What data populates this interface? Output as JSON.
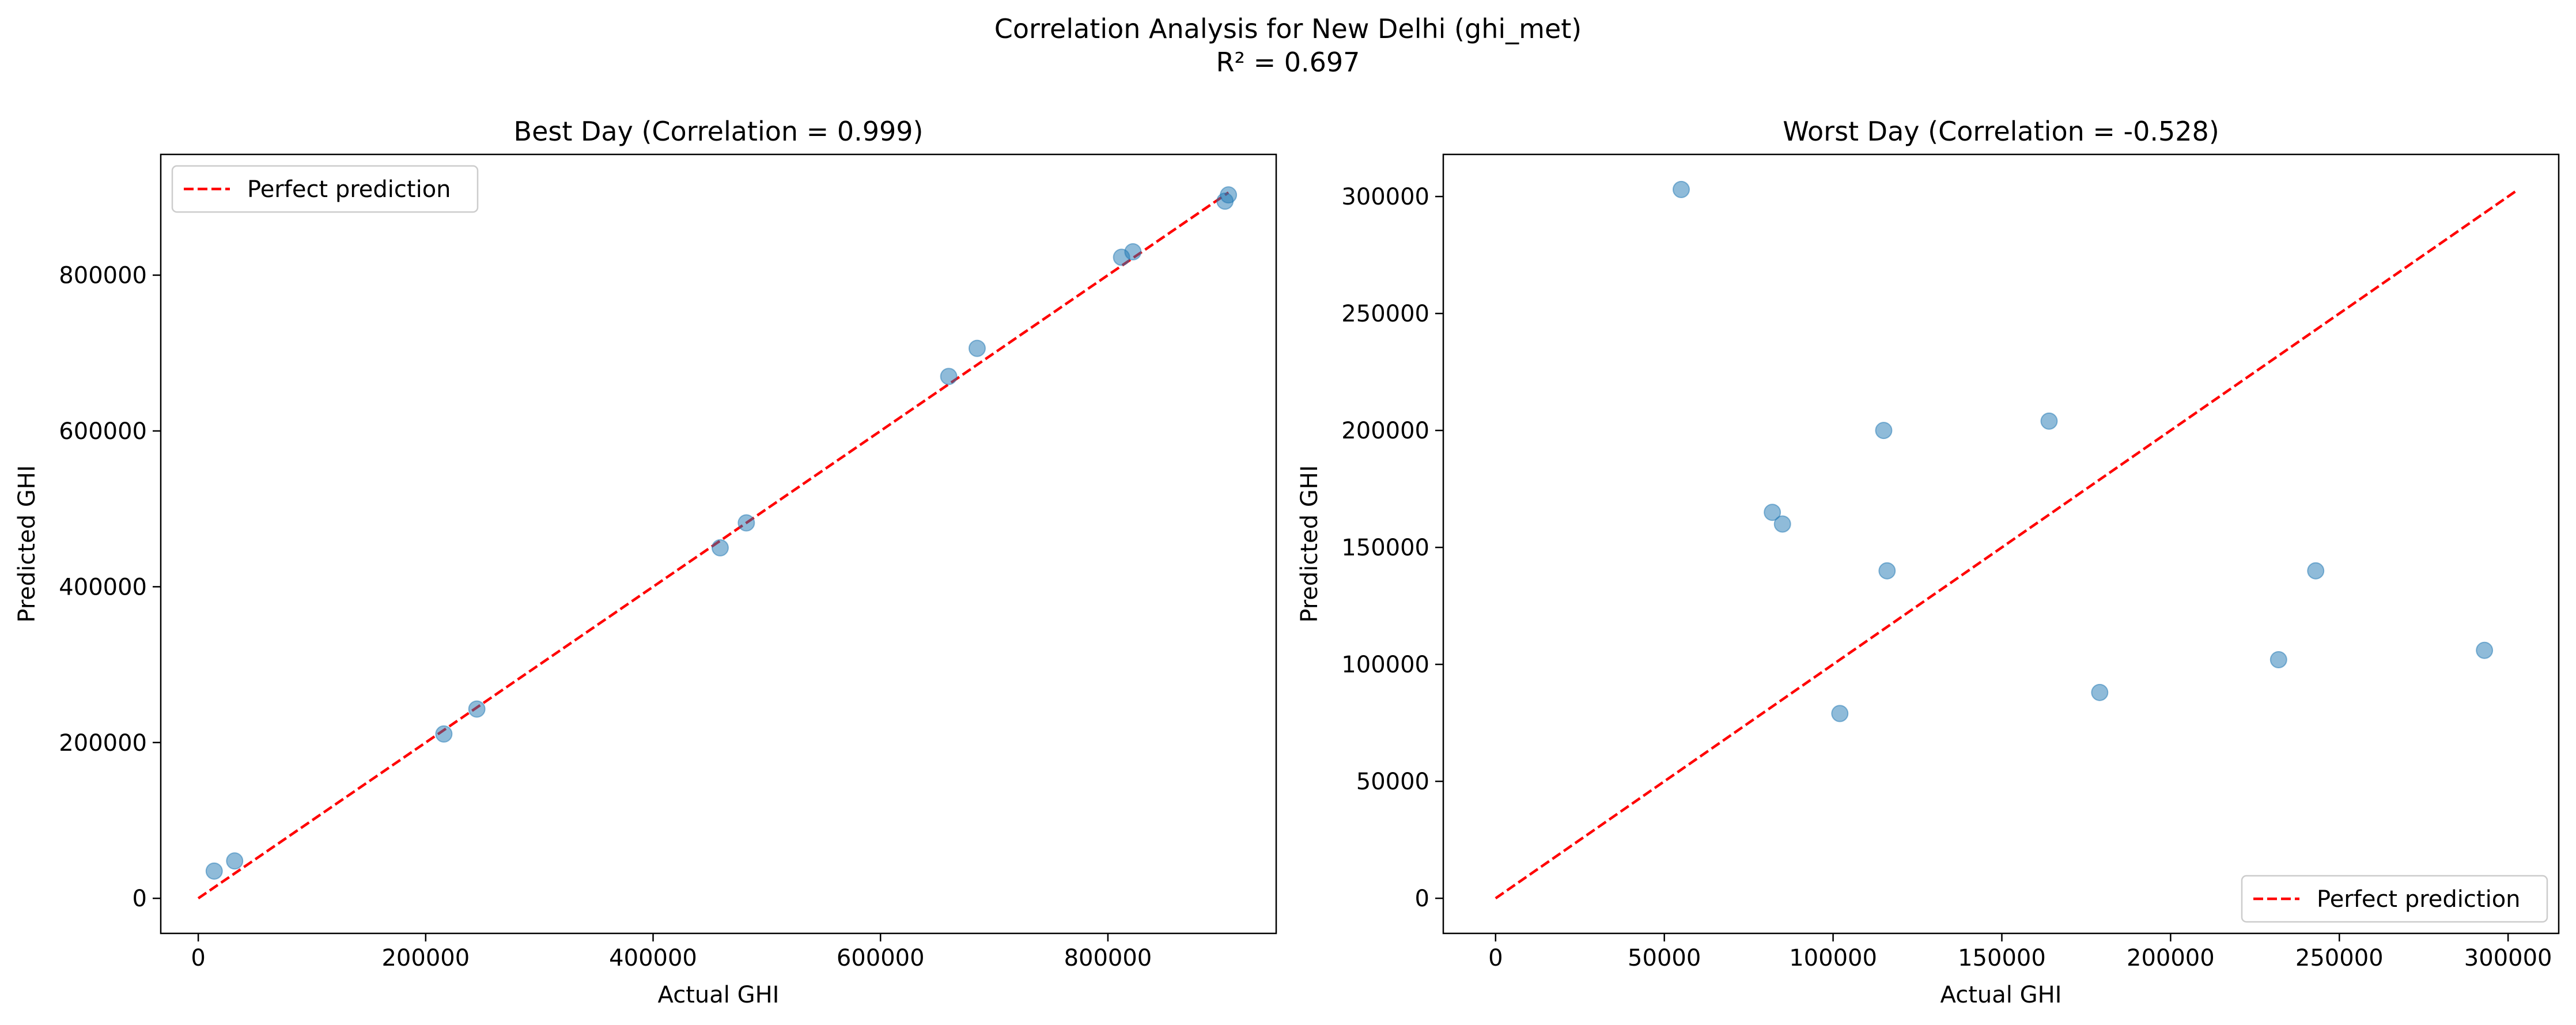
{
  "figure": {
    "title_line1": "Correlation Analysis for New Delhi (ghi_met)",
    "title_line2": "R² = 0.697"
  },
  "colors": {
    "point": "#1f77b4",
    "reference_line": "#ff0000",
    "axes": "#000000"
  },
  "chart_data": [
    {
      "type": "scatter",
      "title": "Best Day (Correlation = 0.999)",
      "xlabel": "Actual GHI",
      "ylabel": "Predicted GHI",
      "xlim": [
        -33000,
        948000
      ],
      "ylim": [
        -45000,
        955000
      ],
      "xticks": [
        0,
        200000,
        400000,
        600000,
        800000
      ],
      "xtick_labels": [
        "0",
        "200000",
        "400000",
        "600000",
        "800000"
      ],
      "yticks": [
        0,
        200000,
        400000,
        600000,
        800000
      ],
      "ytick_labels": [
        "0",
        "200000",
        "400000",
        "600000",
        "800000"
      ],
      "grid": false,
      "legend": {
        "position": "upper-left",
        "entries": [
          "Perfect prediction"
        ]
      },
      "reference_line": {
        "name": "Perfect prediction",
        "style": "dashed",
        "x": [
          0,
          906000
        ],
        "y": [
          0,
          906000
        ]
      },
      "points": [
        {
          "x": 14000,
          "y": 35000
        },
        {
          "x": 32000,
          "y": 48000
        },
        {
          "x": 216000,
          "y": 211000
        },
        {
          "x": 245000,
          "y": 243000
        },
        {
          "x": 459000,
          "y": 450000
        },
        {
          "x": 482000,
          "y": 482000
        },
        {
          "x": 660000,
          "y": 670000
        },
        {
          "x": 685000,
          "y": 706000
        },
        {
          "x": 812000,
          "y": 823000
        },
        {
          "x": 822000,
          "y": 830000
        },
        {
          "x": 903000,
          "y": 895000
        },
        {
          "x": 906000,
          "y": 903000
        }
      ]
    },
    {
      "type": "scatter",
      "title": "Worst Day (Correlation = -0.528)",
      "xlabel": "Actual GHI",
      "ylabel": "Predicted GHI",
      "xlim": [
        -15500,
        315000
      ],
      "ylim": [
        -15000,
        318000
      ],
      "xticks": [
        0,
        50000,
        100000,
        150000,
        200000,
        250000,
        300000
      ],
      "xtick_labels": [
        "0",
        "50000",
        "100000",
        "150000",
        "200000",
        "250000",
        "300000"
      ],
      "yticks": [
        0,
        50000,
        100000,
        150000,
        200000,
        250000,
        300000
      ],
      "ytick_labels": [
        "0",
        "50000",
        "100000",
        "150000",
        "200000",
        "250000",
        "300000"
      ],
      "grid": false,
      "legend": {
        "position": "lower-right",
        "entries": [
          "Perfect prediction"
        ]
      },
      "reference_line": {
        "name": "Perfect prediction",
        "style": "dashed",
        "x": [
          0,
          303000
        ],
        "y": [
          0,
          303000
        ]
      },
      "points": [
        {
          "x": 55000,
          "y": 303000
        },
        {
          "x": 82000,
          "y": 165000
        },
        {
          "x": 85000,
          "y": 160000
        },
        {
          "x": 102000,
          "y": 79000
        },
        {
          "x": 115000,
          "y": 200000
        },
        {
          "x": 116000,
          "y": 140000
        },
        {
          "x": 164000,
          "y": 204000
        },
        {
          "x": 179000,
          "y": 88000
        },
        {
          "x": 232000,
          "y": 102000
        },
        {
          "x": 243000,
          "y": 140000
        },
        {
          "x": 293000,
          "y": 106000
        }
      ]
    }
  ]
}
